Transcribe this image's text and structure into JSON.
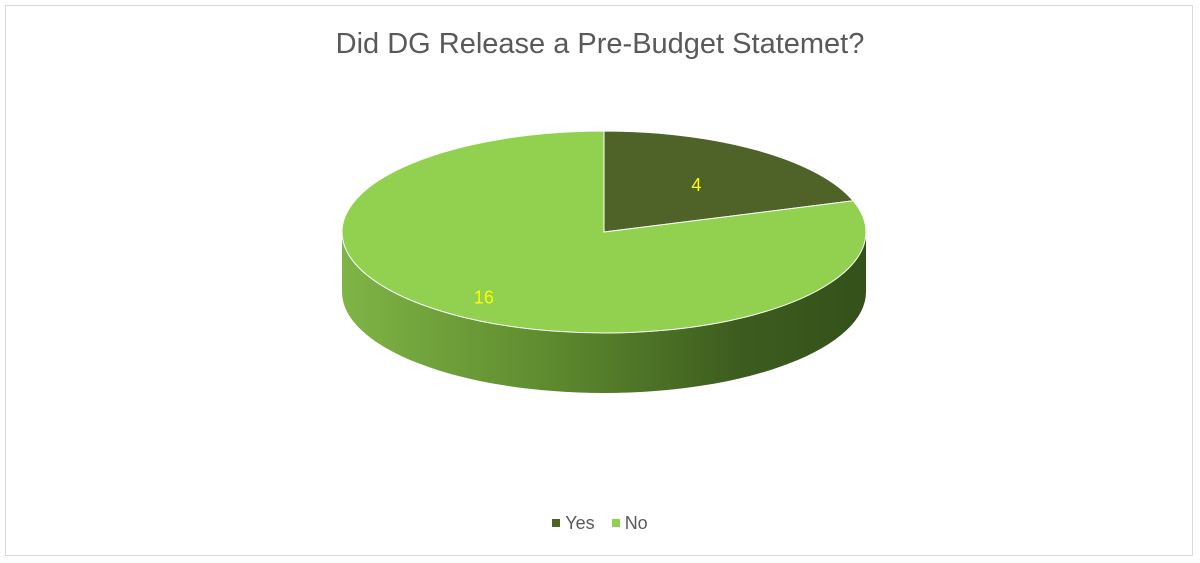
{
  "chart_data": {
    "type": "pie",
    "title": "Did DG Release a Pre-Budget Statemet?",
    "categories": [
      "Yes",
      "No"
    ],
    "values": [
      4,
      16
    ],
    "data_labels": [
      "4",
      "16"
    ],
    "colors": [
      "#4f6228",
      "#92d050"
    ],
    "legend_position": "bottom",
    "style": "3d",
    "label_color": "#ffff00"
  }
}
